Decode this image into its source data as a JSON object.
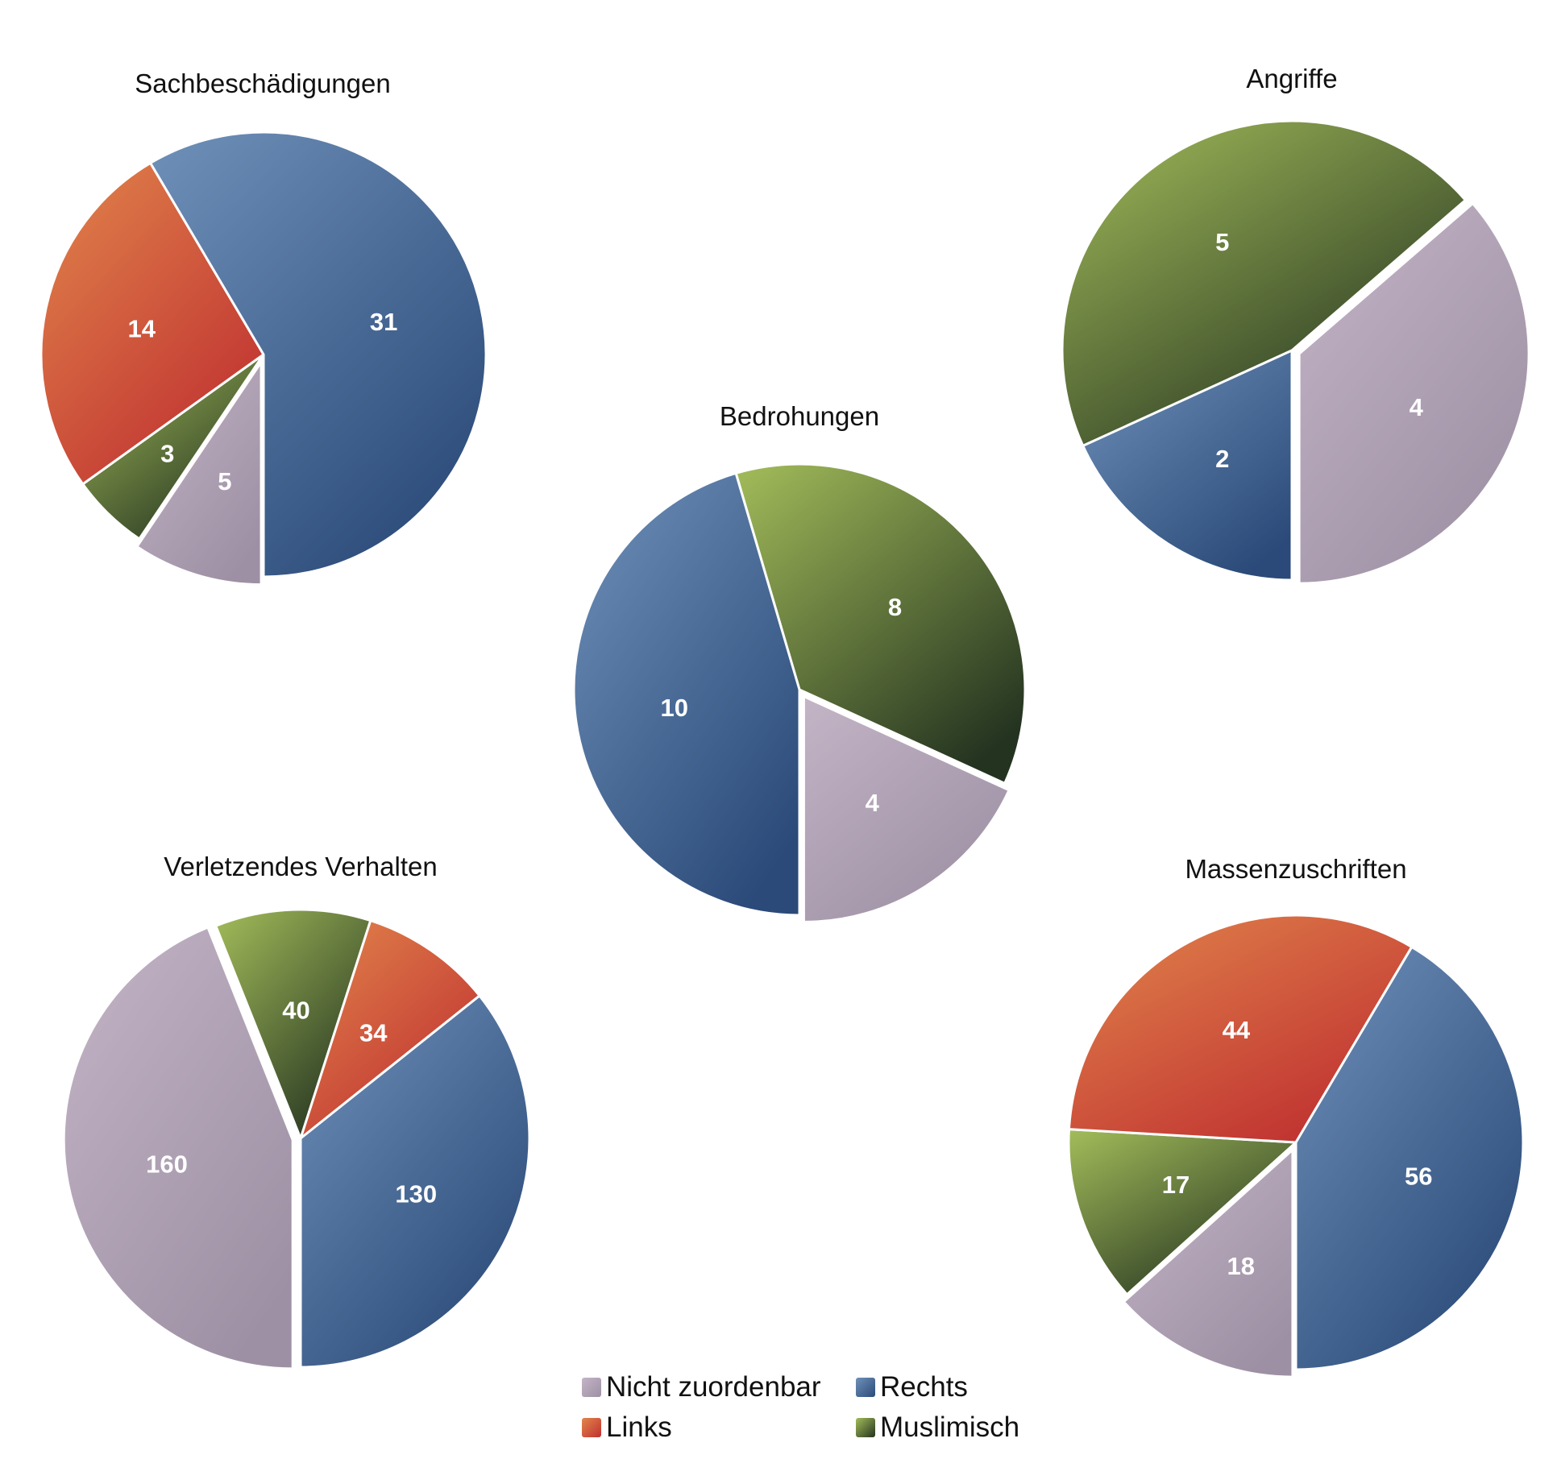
{
  "chart_data": [
    {
      "type": "pie",
      "title": "Sachbeschädigungen",
      "slices": [
        {
          "category": "Nicht zuordenbar",
          "value": 5,
          "label": "5",
          "exploded": true
        },
        {
          "category": "Muslimisch",
          "value": 3,
          "label": "3"
        },
        {
          "category": "Links",
          "value": 14,
          "label": "14"
        },
        {
          "category": "Rechts",
          "value": 31,
          "label": "31"
        }
      ]
    },
    {
      "type": "pie",
      "title": "Angriffe",
      "slices": [
        {
          "category": "Nicht zuordenbar",
          "value": 4,
          "label": "4",
          "exploded": true
        },
        {
          "category": "Muslimisch",
          "value": 5,
          "label": "5"
        },
        {
          "category": "Rechts",
          "value": 2,
          "label": "2"
        }
      ]
    },
    {
      "type": "pie",
      "title": "Bedrohungen",
      "slices": [
        {
          "category": "Nicht zuordenbar",
          "value": 4,
          "label": "4",
          "exploded": true
        },
        {
          "category": "Muslimisch",
          "value": 8,
          "label": "8"
        },
        {
          "category": "Rechts",
          "value": 10,
          "label": "10"
        }
      ]
    },
    {
      "type": "pie",
      "title": "Verletzendes Verhalten",
      "slices": [
        {
          "category": "Nicht zuordenbar",
          "value": 160,
          "label": "160",
          "exploded": true
        },
        {
          "category": "Muslimisch",
          "value": 40,
          "label": "40"
        },
        {
          "category": "Links",
          "value": 34,
          "label": "34"
        },
        {
          "category": "Rechts",
          "value": 130,
          "label": "130"
        }
      ]
    },
    {
      "type": "pie",
      "title": "Massenzuschriften",
      "slices": [
        {
          "category": "Nicht zuordenbar",
          "value": 18,
          "label": "18",
          "exploded": true
        },
        {
          "category": "Muslimisch",
          "value": 17,
          "label": "17"
        },
        {
          "category": "Links",
          "value": 44,
          "label": "44"
        },
        {
          "category": "Rechts",
          "value": 56,
          "label": "56"
        }
      ]
    }
  ],
  "legend": {
    "placement": "bottom-center",
    "items": [
      {
        "key": "nicht",
        "label": "Nicht zuordenbar"
      },
      {
        "key": "rechts",
        "label": "Rechts"
      },
      {
        "key": "links",
        "label": "Links"
      },
      {
        "key": "muslimisch",
        "label": "Muslimisch"
      }
    ]
  },
  "colors": {
    "Nicht zuordenbar": [
      "#c3b5c6",
      "#9e90a4"
    ],
    "Rechts": [
      "#6f91b9",
      "#2b4a79"
    ],
    "Links": [
      "#e2864c",
      "#bf3030"
    ],
    "Muslimisch": [
      "#a3bd5a",
      "#243320"
    ]
  }
}
